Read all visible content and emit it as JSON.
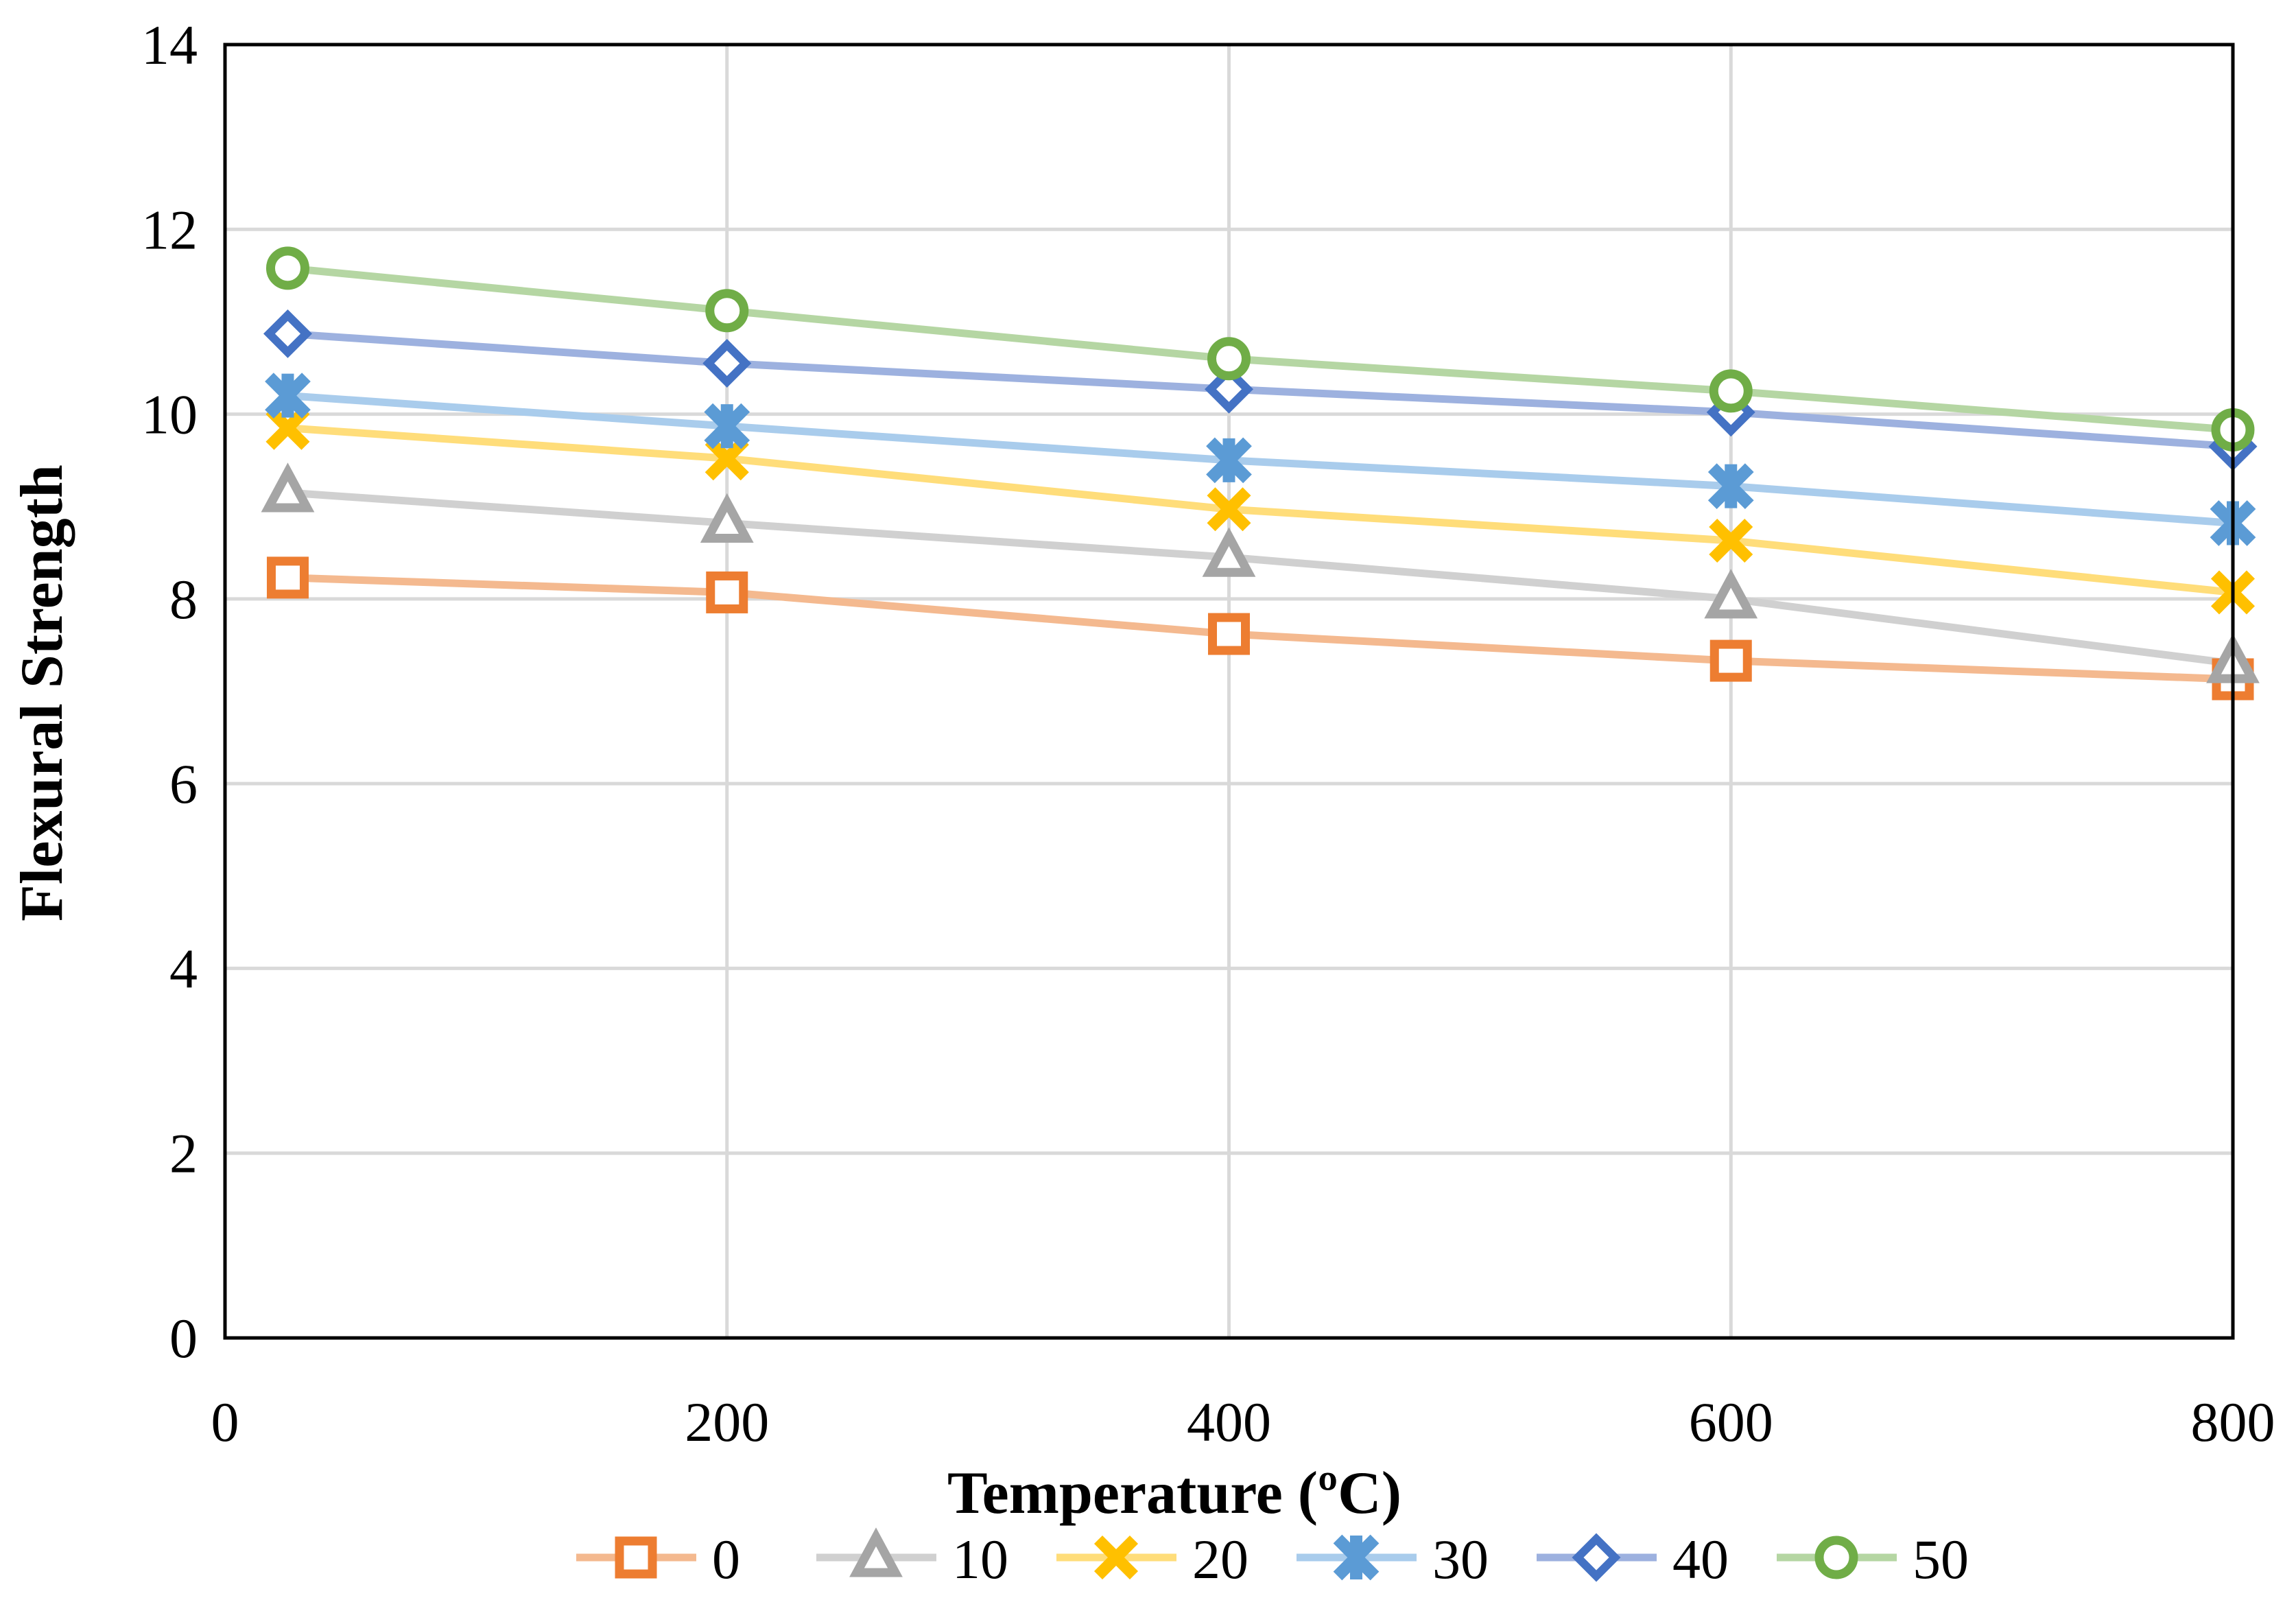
{
  "chart_data": {
    "type": "line",
    "title": "",
    "xlabel": "Temperature (ºC)",
    "ylabel": "Flexural Strength",
    "xlim": [
      0,
      800
    ],
    "ylim": [
      0,
      14
    ],
    "x_ticks": [
      "0",
      "200",
      "400",
      "600",
      "800"
    ],
    "y_ticks": [
      "0",
      "2",
      "4",
      "6",
      "8",
      "10",
      "12",
      "14"
    ],
    "grid": true,
    "legend_position": "bottom",
    "x": [
      25,
      200,
      400,
      600,
      800
    ],
    "series": [
      {
        "name": "0",
        "values": [
          8.23,
          8.07,
          7.62,
          7.33,
          7.13
        ],
        "line_color": "#F4B98F",
        "marker_color": "#ED7D31",
        "marker": "square"
      },
      {
        "name": "10",
        "values": [
          9.15,
          8.82,
          8.45,
          8.0,
          7.3
        ],
        "line_color": "#D0D0D0",
        "marker_color": "#A5A5A5",
        "marker": "triangle"
      },
      {
        "name": "20",
        "values": [
          9.85,
          9.52,
          8.97,
          8.63,
          8.07
        ],
        "line_color": "#FFDD7A",
        "marker_color": "#FFC000",
        "marker": "x"
      },
      {
        "name": "30",
        "values": [
          10.2,
          9.87,
          9.5,
          9.22,
          8.82
        ],
        "line_color": "#A9CCEC",
        "marker_color": "#5B9BD5",
        "marker": "star"
      },
      {
        "name": "40",
        "values": [
          10.87,
          10.55,
          10.27,
          10.02,
          9.65
        ],
        "line_color": "#9DB1DF",
        "marker_color": "#4472C4",
        "marker": "diamond"
      },
      {
        "name": "50",
        "values": [
          11.58,
          11.12,
          10.6,
          10.25,
          9.83
        ],
        "line_color": "#B5D6A3",
        "marker_color": "#70AD47",
        "marker": "circle"
      }
    ]
  }
}
